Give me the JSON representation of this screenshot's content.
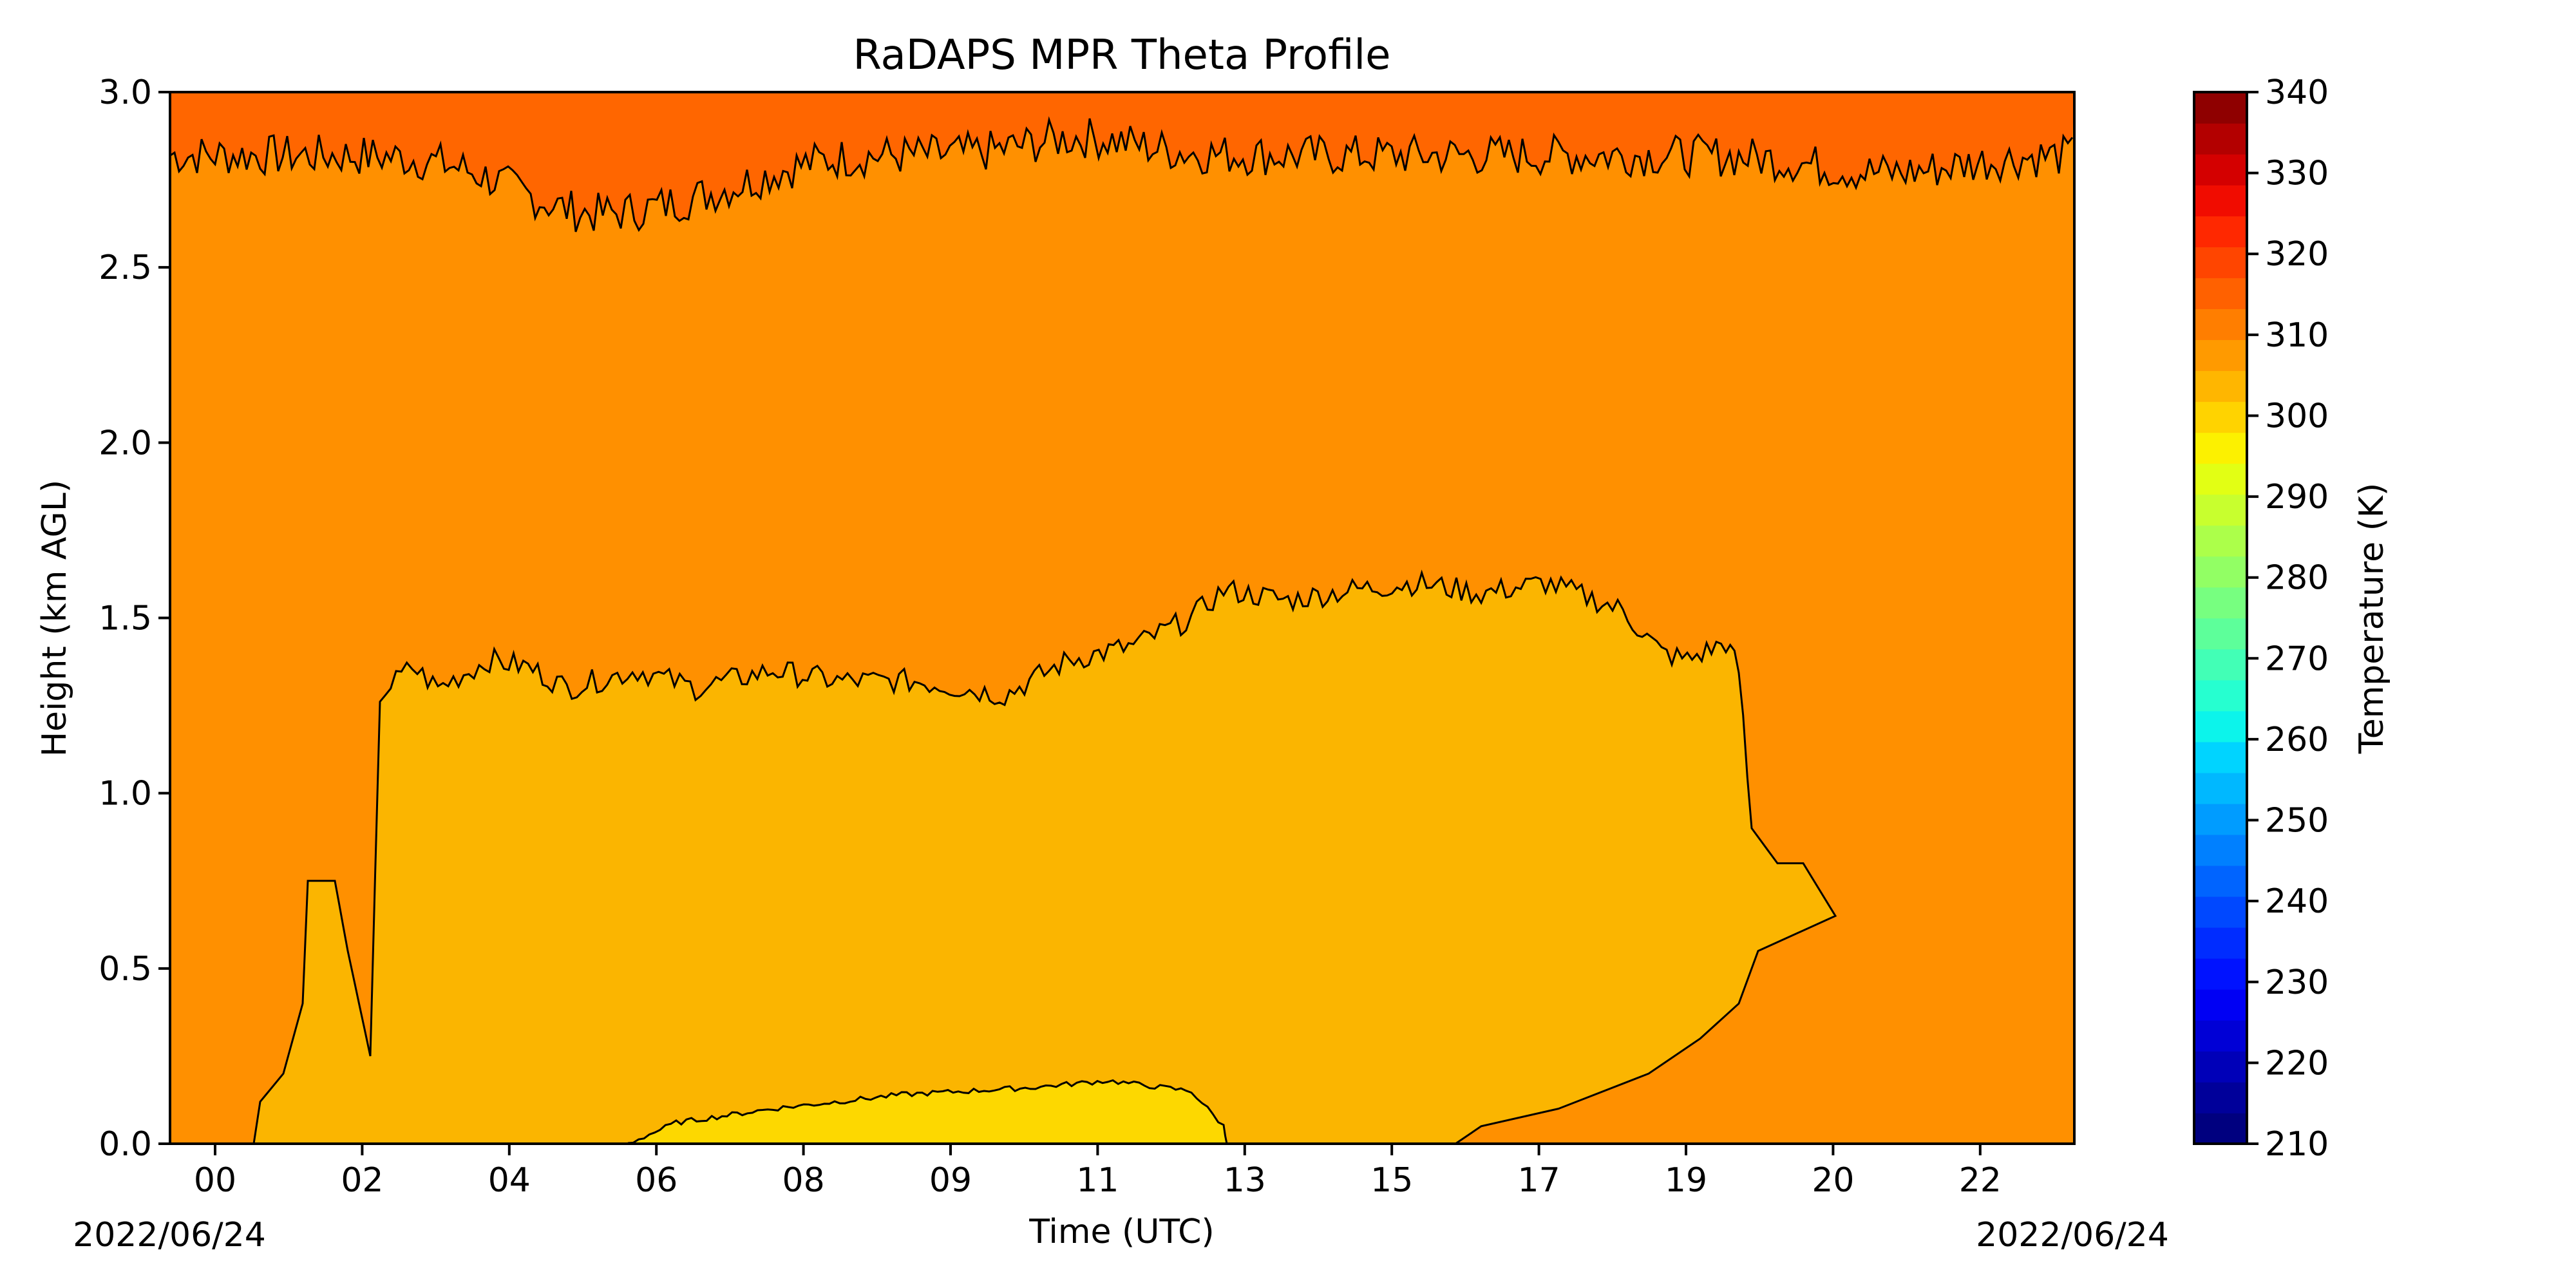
{
  "chart_data": {
    "type": "heatmap",
    "title": "RaDAPS MPR Theta Profile",
    "xlabel": "Time (UTC)",
    "ylabel": "Height (km AGL)",
    "date_left": "2022/06/24",
    "date_right": "2022/06/24",
    "x_tick_labels": [
      "00",
      "02",
      "04",
      "06",
      "08",
      "09",
      "11",
      "13",
      "15",
      "17",
      "19",
      "20",
      "22"
    ],
    "y_ticks": [
      0.0,
      0.5,
      1.0,
      1.5,
      2.0,
      2.5,
      3.0
    ],
    "y_tick_labels": [
      "0.0",
      "0.5",
      "1.0",
      "1.5",
      "2.0",
      "2.5",
      "3.0"
    ],
    "ylim": [
      0.0,
      3.0
    ],
    "colorbar": {
      "label": "Temperature (K)",
      "range": [
        210,
        340
      ],
      "ticks": [
        "210",
        "220",
        "230",
        "240",
        "250",
        "260",
        "270",
        "280",
        "290",
        "300",
        "310",
        "320",
        "330",
        "340"
      ],
      "colormap": "jet",
      "levels": [
        "#00007f",
        "#00009a",
        "#0000b8",
        "#0000d6",
        "#0000f4",
        "#0012ff",
        "#002cff",
        "#0048ff",
        "#0064ff",
        "#0080ff",
        "#009cff",
        "#00b8ff",
        "#00d4ff",
        "#0cf4eb",
        "#26ffd0",
        "#42ffb6",
        "#5dff9a",
        "#77ff80",
        "#92ff64",
        "#acff4a",
        "#c8ff2e",
        "#e2ff14",
        "#fcf100",
        "#ffd300",
        "#ffb600",
        "#ff9a00",
        "#ff7e00",
        "#ff6100",
        "#ff4500",
        "#ff2800",
        "#f10c00",
        "#d40000",
        "#b30000",
        "#8f0000"
      ]
    },
    "regions": [
      {
        "range": "305-310 K",
        "color": "#ff9000",
        "description_area": "bulk of domain"
      },
      {
        "range": "310-315 K",
        "color": "#ff6600",
        "y_approx": [
          2.8,
          3.0
        ]
      },
      {
        "range": "300-305 K",
        "color": "#fbb500",
        "y_approx": [
          0.0,
          1.55
        ]
      },
      {
        "range": "295-300 K",
        "color": "#fdd800",
        "y_approx": [
          0.0,
          0.17
        ]
      }
    ]
  }
}
